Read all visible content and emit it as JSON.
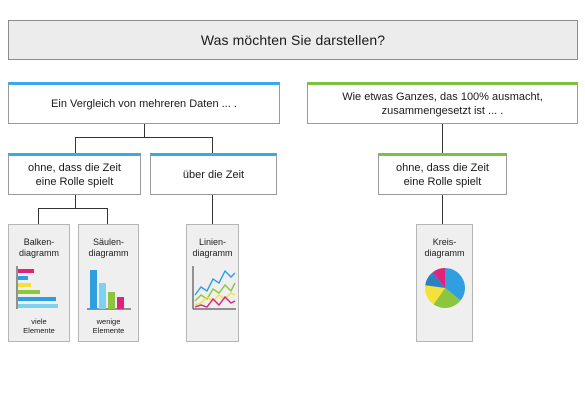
{
  "header": {
    "title": "Was möchten Sie darstellen?"
  },
  "left": {
    "question": "Ein Vergleich von mehreren Daten ... .",
    "branch_no_time": "ohne, dass die Zeit\neine Rolle spielt",
    "branch_time": "über die Zeit",
    "cards": [
      {
        "title": "Balken-\ndiagramm",
        "caption": "viele\nElemente",
        "icon": "bar-chart-icon"
      },
      {
        "title": "Säulen-\ndiagramm",
        "caption": "wenige\nElemente",
        "icon": "column-chart-icon"
      },
      {
        "title": "Linien-\ndiagramm",
        "caption": "",
        "icon": "line-chart-icon"
      }
    ]
  },
  "right": {
    "question": "Wie etwas Ganzes, das 100% ausmacht,\nzusammengesetzt ist ... .",
    "branch_no_time": "ohne, dass die Zeit\neine Rolle spielt",
    "cards": [
      {
        "title": "Kreis-\ndiagramm",
        "caption": "",
        "icon": "pie-chart-icon"
      }
    ]
  },
  "colors": {
    "blue_accent": "#3aa7e6",
    "green_accent": "#7cc242",
    "header_bg": "#ececec",
    "card_bg": "#efefef",
    "icon_pink": "#e0237a",
    "icon_blue": "#2f9fe0",
    "icon_green": "#8cc63f",
    "icon_yellow": "#f4e23a"
  }
}
